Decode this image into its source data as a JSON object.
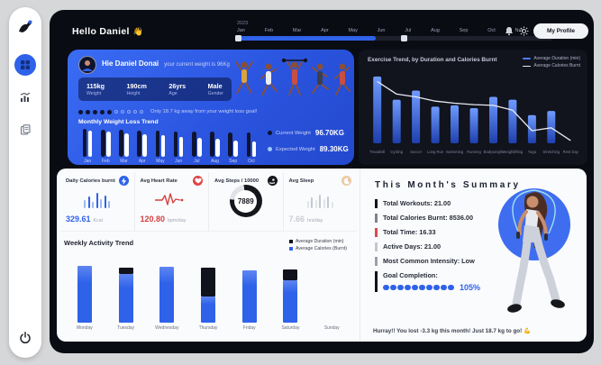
{
  "header": {
    "greeting": "Hello Daniel",
    "wave_emoji": "👋",
    "year_label": "2023",
    "months": [
      "Jan",
      "Feb",
      "Mar",
      "Apr",
      "May",
      "Jun",
      "Jul",
      "Aug",
      "Sep",
      "Oct",
      "Nov",
      "Dec"
    ],
    "profile_button": "My Profile"
  },
  "sidebar": {
    "items": [
      {
        "name": "dashboard",
        "icon": "grid-icon",
        "active": true
      },
      {
        "name": "analytics",
        "icon": "bar-chart-icon",
        "active": false
      },
      {
        "name": "reports",
        "icon": "pages-icon",
        "active": false
      }
    ]
  },
  "user_card": {
    "name": "Hie Daniel Donai",
    "subtitle": "your current weight is 96Kg",
    "stats": [
      {
        "value": "115kg",
        "label": "Weight"
      },
      {
        "value": "190cm",
        "label": "Height"
      },
      {
        "value": "26yrs",
        "label": "Age"
      },
      {
        "value": "Male",
        "label": "Gender"
      }
    ],
    "goal_progress": {
      "filled": 5,
      "total": 10,
      "text": "Only 18.7 kg away from your weight loss goal!"
    },
    "chart_title": "Monthly Weight Loss Trend",
    "legend": [
      {
        "label": "Current Weight",
        "value": "96.70KG",
        "color": "#0e1430"
      },
      {
        "label": "Expected Weight",
        "value": "89.30KG",
        "color": "#9fc8ff"
      }
    ]
  },
  "exercise_chart": {
    "title": "Exercise Trend, by Duration and Calories Burnt"
  },
  "stats_cards": [
    {
      "title": "Daily Calories burnt",
      "icon": "bolt-icon",
      "icon_color": "#2e62e9",
      "value": "329.61",
      "unit": "Kcal",
      "value_color": "#2e62e9",
      "type": "bars",
      "spark": [
        9,
        13,
        7,
        17,
        10,
        14,
        8
      ],
      "spark_color": "#2e62e9"
    },
    {
      "title": "Avg Heart Rate",
      "icon": "heart-icon",
      "icon_color": "#df4343",
      "value": "120.80",
      "unit": "bpm/day",
      "value_color": "#d8403f",
      "type": "ecg"
    },
    {
      "title": "Avg Steps / 10000",
      "icon": "steps-icon",
      "icon_color": "#15171c",
      "value": "7889",
      "unit": "",
      "value_color": "#15171c",
      "type": "donut"
    },
    {
      "title": "Avg Sleep",
      "icon": "moon-icon",
      "icon_color": "#ecc9a4",
      "value": "7.66",
      "unit": "hrs/day",
      "value_color": "#c9ccd4",
      "type": "bars",
      "spark": [
        8,
        12,
        9,
        15,
        10,
        13,
        7
      ],
      "spark_color": "#c4c8d2"
    }
  ],
  "summary": {
    "title": "This Month's Summary",
    "items": [
      {
        "label": "Total Workouts:",
        "value": "21.00",
        "bar": "#10131c"
      },
      {
        "label": "Total Calories Burnt:",
        "value": "8536.00",
        "bar": "#7c828e"
      },
      {
        "label": "Total Time:",
        "value": "16.33",
        "bar": "#d84b4b"
      },
      {
        "label": "Active Days:",
        "value": "21.00",
        "bar": "#c3c7cf"
      },
      {
        "label": "Most Common Intensity:",
        "value": "Low",
        "bar": "#9aa0ab"
      },
      {
        "label": "Goal Completion:",
        "value": "105%",
        "bar": "#10131c",
        "dots": 10
      }
    ],
    "message": "Hurray!! You lost -3.3 kg this month! Just 18.7 kg to go!",
    "message_emoji": "💪"
  },
  "chart_data": [
    {
      "id": "monthly_weight_loss",
      "type": "bar",
      "title": "Monthly Weight Loss Trend",
      "categories": [
        "Jan",
        "Feb",
        "Mar",
        "Apr",
        "May",
        "Jun",
        "Jul",
        "Aug",
        "Sep",
        "Oct"
      ],
      "series": [
        {
          "name": "Current Weight",
          "color": "#0e1430",
          "values": [
            115,
            113,
            112,
            110,
            109,
            107,
            106,
            104,
            103,
            101
          ]
        },
        {
          "name": "Expected Weight",
          "color": "#ffffff",
          "values": [
            110,
            104,
            99,
            94,
            89,
            84,
            79,
            74,
            69,
            64
          ]
        }
      ],
      "ylim": [
        0,
        120
      ],
      "legend_position": "right"
    },
    {
      "id": "exercise_trend",
      "type": "bar+line",
      "title": "Exercise Trend, by Duration and Calories Burnt",
      "categories": [
        "Treadmill",
        "Cycling",
        "Soccer",
        "Long Run",
        "Swimming",
        "Running",
        "Bodyweight",
        "Weightlifting",
        "Yoga",
        "Stretching",
        "Rest Day"
      ],
      "series": [
        {
          "name": "Average Duration (min)",
          "type": "bar",
          "color": "#4d7cfe",
          "values": [
            95,
            62,
            75,
            52,
            54,
            50,
            66,
            62,
            40,
            46,
            0
          ]
        },
        {
          "name": "Average Calories Burnt",
          "type": "line",
          "color": "#e8eaf2",
          "values": [
            88,
            70,
            66,
            60,
            57,
            55,
            54,
            47,
            18,
            22,
            4
          ]
        }
      ],
      "ylim": [
        0,
        100
      ],
      "legend_position": "top-right"
    },
    {
      "id": "weekly_activity",
      "type": "stacked-bar",
      "title": "Weekly Activity Trend",
      "categories": [
        "Monday",
        "Tuesday",
        "Wednesday",
        "Thursday",
        "Friday",
        "Saturday",
        "Sunday"
      ],
      "series": [
        {
          "name": "Average Calories (Burnt)",
          "color": "#2e62e9",
          "values": [
            88,
            75,
            86,
            40,
            80,
            66,
            0
          ]
        },
        {
          "name": "Average Duration (min)",
          "color": "#10131c",
          "values": [
            0,
            10,
            0,
            45,
            0,
            16,
            0
          ]
        }
      ],
      "ylim": [
        0,
        100
      ],
      "legend_position": "top-right"
    },
    {
      "id": "steps_donut",
      "type": "donut",
      "value": 7889,
      "max": 10000,
      "colors": {
        "filled": "#15171c",
        "empty": "#dfe3e8"
      }
    }
  ],
  "colors": {
    "accent": "#2e62e9",
    "card_blue": "#2d5beb",
    "window_bg": "#0a0c14",
    "danger": "#d8403f"
  }
}
